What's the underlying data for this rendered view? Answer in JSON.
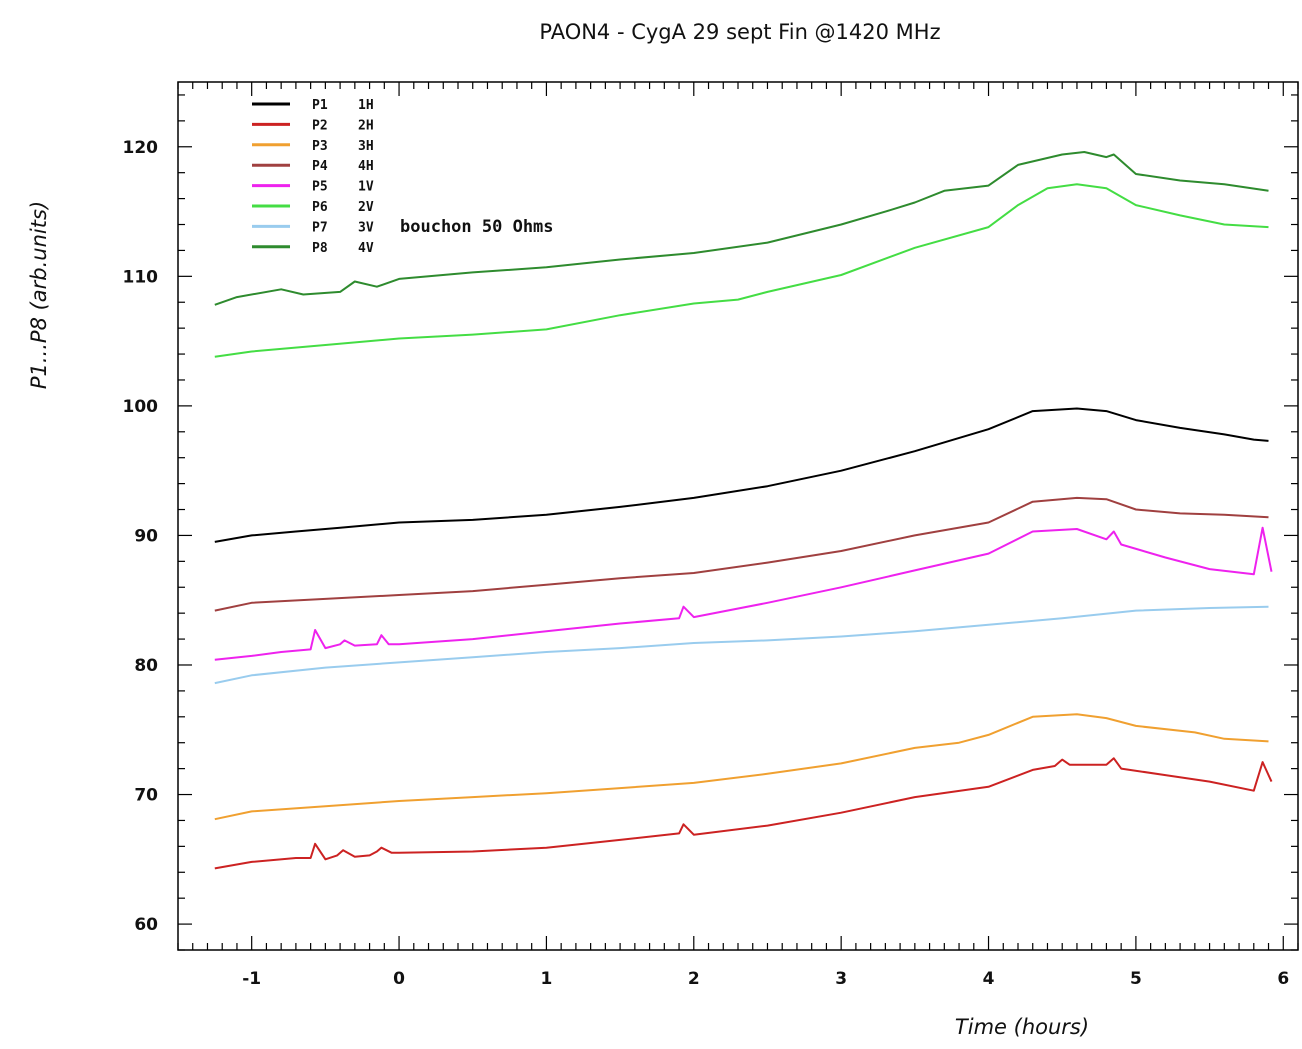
{
  "chart_data": {
    "type": "line",
    "title": "PAON4 - CygA 29 sept Fin @1420 MHz",
    "xlabel": "Time (hours)",
    "ylabel": "P1...P8 (arb.units)",
    "xlim": [
      -1.5,
      6.1
    ],
    "ylim": [
      58,
      125
    ],
    "xticks": [
      -1,
      0,
      1,
      2,
      3,
      4,
      5,
      6
    ],
    "xtick_labels": [
      "-1",
      "0",
      "1",
      "2",
      "3",
      "4",
      "5",
      "6"
    ],
    "yticks": [
      60,
      70,
      80,
      90,
      100,
      110,
      120
    ],
    "ytick_labels": [
      "60",
      "70",
      "80",
      "90",
      "100",
      "110",
      "120"
    ],
    "grid": false,
    "legend": {
      "placement": "top-left"
    },
    "annotation": "bouchon 50 Ohms",
    "series": [
      {
        "name": "P1",
        "pol": "1H",
        "color": "#000000",
        "points": [
          [
            -1.25,
            89.5
          ],
          [
            -1,
            90
          ],
          [
            -0.7,
            90.3
          ],
          [
            -0.4,
            90.6
          ],
          [
            0,
            91
          ],
          [
            0.5,
            91.2
          ],
          [
            1,
            91.6
          ],
          [
            1.5,
            92.2
          ],
          [
            2,
            92.9
          ],
          [
            2.5,
            93.8
          ],
          [
            3,
            95
          ],
          [
            3.5,
            96.5
          ],
          [
            4,
            98.2
          ],
          [
            4.3,
            99.6
          ],
          [
            4.6,
            99.8
          ],
          [
            4.8,
            99.6
          ],
          [
            5,
            98.9
          ],
          [
            5.3,
            98.3
          ],
          [
            5.6,
            97.8
          ],
          [
            5.8,
            97.4
          ],
          [
            5.9,
            97.3
          ]
        ]
      },
      {
        "name": "P2",
        "pol": "2H",
        "color": "#cc2222",
        "points": [
          [
            -1.25,
            64.3
          ],
          [
            -1,
            64.8
          ],
          [
            -0.7,
            65.1
          ],
          [
            -0.6,
            65.1
          ],
          [
            -0.57,
            66.2
          ],
          [
            -0.5,
            65
          ],
          [
            -0.42,
            65.3
          ],
          [
            -0.38,
            65.7
          ],
          [
            -0.3,
            65.2
          ],
          [
            -0.2,
            65.3
          ],
          [
            -0.15,
            65.6
          ],
          [
            -0.12,
            65.9
          ],
          [
            -0.05,
            65.5
          ],
          [
            0,
            65.5
          ],
          [
            0.5,
            65.6
          ],
          [
            1,
            65.9
          ],
          [
            1.5,
            66.5
          ],
          [
            1.9,
            67
          ],
          [
            1.93,
            67.7
          ],
          [
            2,
            66.9
          ],
          [
            2.5,
            67.6
          ],
          [
            3,
            68.6
          ],
          [
            3.5,
            69.8
          ],
          [
            4,
            70.6
          ],
          [
            4.3,
            71.9
          ],
          [
            4.45,
            72.2
          ],
          [
            4.5,
            72.7
          ],
          [
            4.55,
            72.3
          ],
          [
            4.8,
            72.3
          ],
          [
            4.85,
            72.8
          ],
          [
            4.9,
            72
          ],
          [
            5.2,
            71.5
          ],
          [
            5.5,
            71
          ],
          [
            5.8,
            70.3
          ],
          [
            5.86,
            72.5
          ],
          [
            5.92,
            71
          ]
        ]
      },
      {
        "name": "P3",
        "pol": "3H",
        "color": "#f0a030",
        "points": [
          [
            -1.25,
            68.1
          ],
          [
            -1,
            68.7
          ],
          [
            -0.5,
            69.1
          ],
          [
            0,
            69.5
          ],
          [
            0.5,
            69.8
          ],
          [
            1,
            70.1
          ],
          [
            1.5,
            70.5
          ],
          [
            2,
            70.9
          ],
          [
            2.5,
            71.6
          ],
          [
            3,
            72.4
          ],
          [
            3.5,
            73.6
          ],
          [
            3.8,
            74
          ],
          [
            4,
            74.6
          ],
          [
            4.3,
            76
          ],
          [
            4.6,
            76.2
          ],
          [
            4.8,
            75.9
          ],
          [
            5,
            75.3
          ],
          [
            5.4,
            74.8
          ],
          [
            5.6,
            74.3
          ],
          [
            5.9,
            74.1
          ]
        ]
      },
      {
        "name": "P4",
        "pol": "4H",
        "color": "#a04040",
        "points": [
          [
            -1.25,
            84.2
          ],
          [
            -1,
            84.8
          ],
          [
            -0.5,
            85.1
          ],
          [
            0,
            85.4
          ],
          [
            0.5,
            85.7
          ],
          [
            1,
            86.2
          ],
          [
            1.5,
            86.7
          ],
          [
            2,
            87.1
          ],
          [
            2.5,
            87.9
          ],
          [
            3,
            88.8
          ],
          [
            3.5,
            90
          ],
          [
            4,
            91
          ],
          [
            4.3,
            92.6
          ],
          [
            4.6,
            92.9
          ],
          [
            4.8,
            92.8
          ],
          [
            5,
            92
          ],
          [
            5.3,
            91.7
          ],
          [
            5.6,
            91.6
          ],
          [
            5.9,
            91.4
          ]
        ]
      },
      {
        "name": "P5",
        "pol": "1V",
        "color": "#ee22ee",
        "points": [
          [
            -1.25,
            80.4
          ],
          [
            -1,
            80.7
          ],
          [
            -0.8,
            81
          ],
          [
            -0.6,
            81.2
          ],
          [
            -0.57,
            82.7
          ],
          [
            -0.5,
            81.3
          ],
          [
            -0.4,
            81.6
          ],
          [
            -0.37,
            81.9
          ],
          [
            -0.3,
            81.5
          ],
          [
            -0.15,
            81.6
          ],
          [
            -0.12,
            82.3
          ],
          [
            -0.07,
            81.6
          ],
          [
            0,
            81.6
          ],
          [
            0.5,
            82
          ],
          [
            1,
            82.6
          ],
          [
            1.5,
            83.2
          ],
          [
            1.9,
            83.6
          ],
          [
            1.93,
            84.5
          ],
          [
            2,
            83.7
          ],
          [
            2.5,
            84.8
          ],
          [
            3,
            86
          ],
          [
            3.5,
            87.3
          ],
          [
            4,
            88.6
          ],
          [
            4.3,
            90.3
          ],
          [
            4.6,
            90.5
          ],
          [
            4.8,
            89.7
          ],
          [
            4.85,
            90.3
          ],
          [
            4.9,
            89.3
          ],
          [
            5.2,
            88.3
          ],
          [
            5.5,
            87.4
          ],
          [
            5.8,
            87
          ],
          [
            5.86,
            90.6
          ],
          [
            5.92,
            87.2
          ]
        ]
      },
      {
        "name": "P6",
        "pol": "2V",
        "color": "#44dd44",
        "points": [
          [
            -1.25,
            103.8
          ],
          [
            -1,
            104.2
          ],
          [
            -0.5,
            104.7
          ],
          [
            0,
            105.2
          ],
          [
            0.5,
            105.5
          ],
          [
            1,
            105.9
          ],
          [
            1.5,
            107
          ],
          [
            2,
            107.9
          ],
          [
            2.3,
            108.2
          ],
          [
            2.5,
            108.8
          ],
          [
            3,
            110.1
          ],
          [
            3.5,
            112.2
          ],
          [
            4,
            113.8
          ],
          [
            4.2,
            115.5
          ],
          [
            4.4,
            116.8
          ],
          [
            4.6,
            117.1
          ],
          [
            4.8,
            116.8
          ],
          [
            5,
            115.5
          ],
          [
            5.3,
            114.7
          ],
          [
            5.6,
            114
          ],
          [
            5.9,
            113.8
          ]
        ]
      },
      {
        "name": "P7",
        "pol": "3V",
        "color": "#99ccee",
        "points": [
          [
            -1.25,
            78.6
          ],
          [
            -1,
            79.2
          ],
          [
            -0.5,
            79.8
          ],
          [
            0,
            80.2
          ],
          [
            0.5,
            80.6
          ],
          [
            1,
            81
          ],
          [
            1.5,
            81.3
          ],
          [
            2,
            81.7
          ],
          [
            2.5,
            81.9
          ],
          [
            3,
            82.2
          ],
          [
            3.5,
            82.6
          ],
          [
            4,
            83.1
          ],
          [
            4.5,
            83.6
          ],
          [
            5,
            84.2
          ],
          [
            5.5,
            84.4
          ],
          [
            5.9,
            84.5
          ]
        ]
      },
      {
        "name": "P8",
        "pol": "4V",
        "color": "#2e8b2e",
        "points": [
          [
            -1.25,
            107.8
          ],
          [
            -1.1,
            108.4
          ],
          [
            -0.8,
            109
          ],
          [
            -0.65,
            108.6
          ],
          [
            -0.4,
            108.8
          ],
          [
            -0.3,
            109.6
          ],
          [
            -0.15,
            109.2
          ],
          [
            0,
            109.8
          ],
          [
            0.5,
            110.3
          ],
          [
            1,
            110.7
          ],
          [
            1.5,
            111.3
          ],
          [
            2,
            111.8
          ],
          [
            2.5,
            112.6
          ],
          [
            3,
            114
          ],
          [
            3.3,
            115
          ],
          [
            3.5,
            115.7
          ],
          [
            3.7,
            116.6
          ],
          [
            4,
            117
          ],
          [
            4.2,
            118.6
          ],
          [
            4.5,
            119.4
          ],
          [
            4.65,
            119.6
          ],
          [
            4.8,
            119.2
          ],
          [
            4.85,
            119.4
          ],
          [
            5,
            117.9
          ],
          [
            5.3,
            117.4
          ],
          [
            5.6,
            117.1
          ],
          [
            5.9,
            116.6
          ]
        ]
      }
    ]
  }
}
